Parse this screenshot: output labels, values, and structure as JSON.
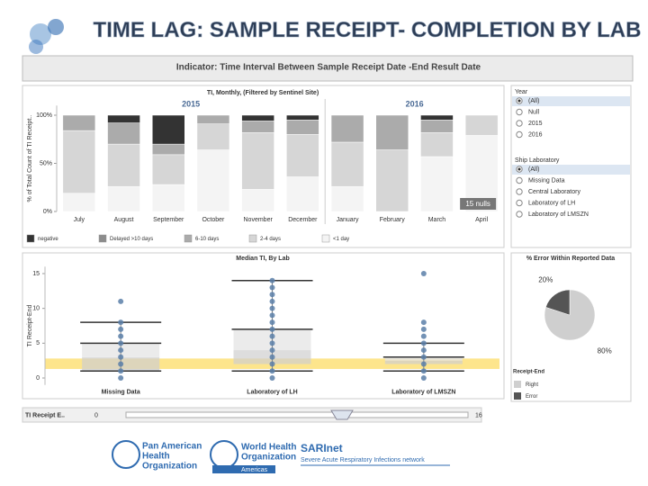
{
  "title": "TIME LAG: SAMPLE RECEIPT- COMPLETION BY LAB",
  "indicator": "Indicator: Time Interval Between Sample Receipt Date -End Result Date",
  "chart_data": [
    {
      "type": "bar",
      "stacked": true,
      "title": "TI, Monthly, (Filtered by Sentinel Site)",
      "y_label": "% of Total Count of TI Receipt..",
      "groups": [
        {
          "name": "2015",
          "categories": [
            "July",
            "August",
            "September",
            "October",
            "November",
            "December"
          ]
        },
        {
          "name": "2016",
          "categories": [
            "January",
            "February",
            "March",
            "April"
          ]
        }
      ],
      "series": [
        {
          "name": "negative",
          "color": "#333333",
          "values": [
            0,
            8,
            30,
            0,
            6,
            5,
            0,
            0,
            5,
            0
          ]
        },
        {
          "name": "Delayed >10 days",
          "color": "#8c8c8c",
          "values": [
            0,
            0,
            0,
            0,
            0,
            0,
            0,
            0,
            0,
            0
          ]
        },
        {
          "name": "6-10 days",
          "color": "#ababab",
          "values": [
            16,
            22,
            11,
            9,
            12,
            15,
            28,
            36,
            13,
            0
          ]
        },
        {
          "name": "2-4 days",
          "color": "#d6d6d6",
          "values": [
            65,
            44,
            31,
            27,
            59,
            44,
            46,
            64,
            25,
            21
          ]
        },
        {
          "name": "<1 day",
          "color": "#f4f4f4",
          "values": [
            19,
            26,
            28,
            64,
            23,
            36,
            26,
            0,
            57,
            79
          ]
        }
      ],
      "ylim": [
        0,
        110
      ],
      "yticks": [
        {
          "value": 0,
          "label": "0%"
        },
        {
          "value": 50,
          "label": "50%"
        },
        {
          "value": 100,
          "label": "100%"
        }
      ],
      "annotation": "15 nulls"
    },
    {
      "type": "box",
      "title": "Median TI, By Lab",
      "y_label": "TI Receipt-End",
      "categories": [
        "Missing Data",
        "Laboratory of LH",
        "Laboratory of LMSZN"
      ],
      "min": [
        1,
        1,
        1
      ],
      "q1": [
        1,
        2,
        2
      ],
      "median": [
        3,
        4,
        2.5
      ],
      "q3": [
        5,
        7,
        3
      ],
      "max": [
        8,
        14,
        5
      ],
      "points": [
        [
          0,
          1,
          2,
          3,
          4,
          5,
          6,
          7,
          8,
          11
        ],
        [
          0,
          1,
          2,
          3,
          4,
          5,
          6,
          7,
          8,
          9,
          10,
          11,
          12,
          13,
          14
        ],
        [
          0,
          1,
          2,
          3,
          4,
          5,
          6,
          7,
          8,
          15
        ]
      ],
      "point_color": "#5b7fa8",
      "reference_band": [
        1.3,
        2.8
      ],
      "reference_color": "#fde58c",
      "ylim": [
        -1,
        16
      ],
      "yticks": [
        0,
        5,
        10,
        15
      ]
    },
    {
      "type": "pie",
      "title": "% Error Within Reported Data",
      "legend_title": "Receipt-End",
      "categories": [
        "Right",
        "Error"
      ],
      "values": [
        80,
        20
      ],
      "value_labels": [
        "80%",
        "20%"
      ],
      "colors": [
        "#cfcfcf",
        "#555555"
      ]
    }
  ],
  "filters": [
    {
      "title": "Year",
      "options": [
        "(All)",
        "Null",
        "2015",
        "2016"
      ],
      "selected": 0
    },
    {
      "title": "Ship Laboratory",
      "options": [
        "(All)",
        "Missing Data",
        "Central Laboratory",
        "Laboratory of LH",
        "Laboratory of LMSZN"
      ],
      "selected": 0
    }
  ],
  "slider": {
    "label": "TI Receipt E..",
    "min": 0,
    "max": 16
  },
  "logos": {
    "paho": [
      "Pan American",
      "Health",
      "Organization"
    ],
    "who": [
      "World Health",
      "Organization"
    ],
    "who_sub": "Americas",
    "sari": "SARInet",
    "sari_sub": "Severe Acute Respiratory Infections network"
  }
}
